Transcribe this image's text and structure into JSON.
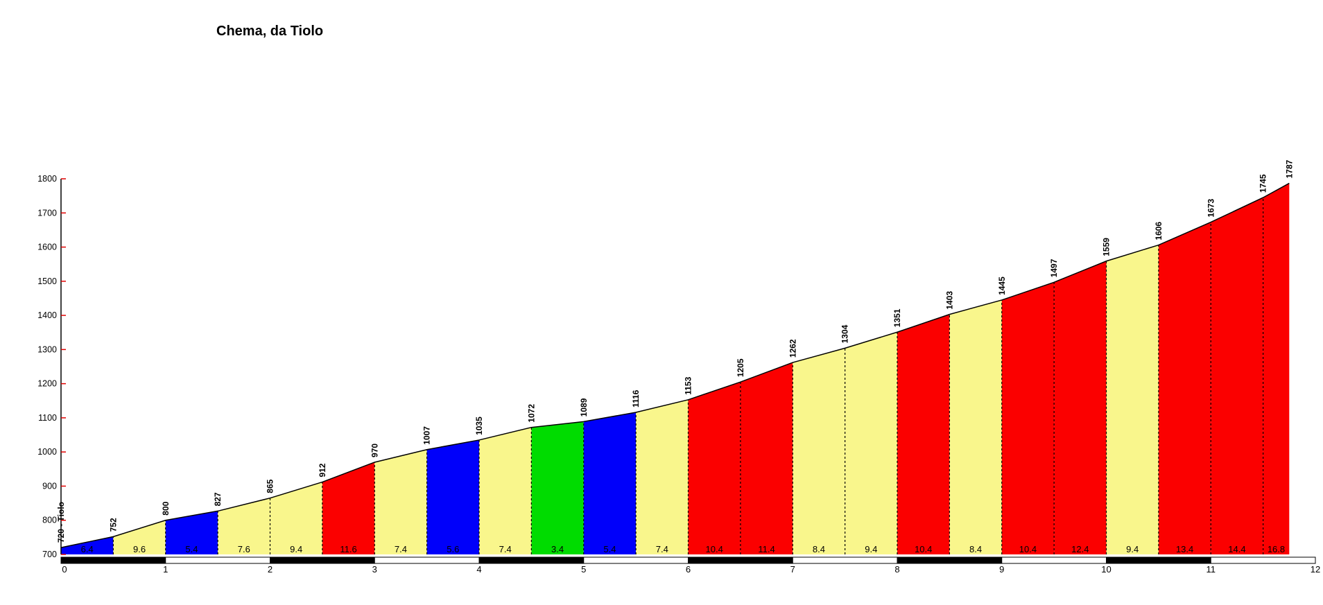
{
  "title": "Chema, da Tiolo",
  "chart_data": {
    "type": "area",
    "title": "Chema, da Tiolo",
    "x_unit": "km",
    "y_unit": "m",
    "xlim": [
      0,
      12
    ],
    "ylim": [
      700,
      1800
    ],
    "x_ticks": [
      0,
      1,
      2,
      3,
      4,
      5,
      6,
      7,
      8,
      9,
      10,
      11,
      12
    ],
    "y_ticks": [
      700,
      800,
      900,
      1000,
      1100,
      1200,
      1300,
      1400,
      1500,
      1600,
      1700,
      1800
    ],
    "grid": false,
    "legend": false,
    "start_point_name": "Tiolo",
    "start_elevation_label": "720 - Tiolo",
    "points": [
      {
        "km": 0,
        "ele": 720,
        "label": "720 - Tiolo"
      },
      {
        "km": 0.5,
        "ele": 752,
        "label": "752"
      },
      {
        "km": 1,
        "ele": 800,
        "label": "800"
      },
      {
        "km": 1.5,
        "ele": 827,
        "label": "827"
      },
      {
        "km": 2,
        "ele": 865,
        "label": "865"
      },
      {
        "km": 2.5,
        "ele": 912,
        "label": "912"
      },
      {
        "km": 3,
        "ele": 970,
        "label": "970"
      },
      {
        "km": 3.5,
        "ele": 1007,
        "label": "1007"
      },
      {
        "km": 4,
        "ele": 1035,
        "label": "1035"
      },
      {
        "km": 4.5,
        "ele": 1072,
        "label": "1072"
      },
      {
        "km": 5,
        "ele": 1089,
        "label": "1089"
      },
      {
        "km": 5.5,
        "ele": 1116,
        "label": "1116"
      },
      {
        "km": 6,
        "ele": 1153,
        "label": "1153"
      },
      {
        "km": 6.5,
        "ele": 1205,
        "label": "1205"
      },
      {
        "km": 7,
        "ele": 1262,
        "label": "1262"
      },
      {
        "km": 7.5,
        "ele": 1304,
        "label": "1304"
      },
      {
        "km": 8,
        "ele": 1351,
        "label": "1351"
      },
      {
        "km": 8.5,
        "ele": 1403,
        "label": "1403"
      },
      {
        "km": 9,
        "ele": 1445,
        "label": "1445"
      },
      {
        "km": 9.5,
        "ele": 1497,
        "label": "1497"
      },
      {
        "km": 10,
        "ele": 1559,
        "label": "1559"
      },
      {
        "km": 10.5,
        "ele": 1606,
        "label": "1606"
      },
      {
        "km": 11,
        "ele": 1673,
        "label": "1673"
      },
      {
        "km": 11.5,
        "ele": 1745,
        "label": "1745"
      },
      {
        "km": 11.75,
        "ele": 1787,
        "label": "1787"
      }
    ],
    "segments": [
      {
        "from_km": 0,
        "to_km": 0.5,
        "gradient": "6.4",
        "color": "blue"
      },
      {
        "from_km": 0.5,
        "to_km": 1,
        "gradient": "9.6",
        "color": "yellow"
      },
      {
        "from_km": 1,
        "to_km": 1.5,
        "gradient": "5.4",
        "color": "blue"
      },
      {
        "from_km": 1.5,
        "to_km": 2,
        "gradient": "7.6",
        "color": "yellow"
      },
      {
        "from_km": 2,
        "to_km": 2.5,
        "gradient": "9.4",
        "color": "yellow"
      },
      {
        "from_km": 2.5,
        "to_km": 3,
        "gradient": "11.6",
        "color": "red"
      },
      {
        "from_km": 3,
        "to_km": 3.5,
        "gradient": "7.4",
        "color": "yellow"
      },
      {
        "from_km": 3.5,
        "to_km": 4,
        "gradient": "5.6",
        "color": "blue"
      },
      {
        "from_km": 4,
        "to_km": 4.5,
        "gradient": "7.4",
        "color": "yellow"
      },
      {
        "from_km": 4.5,
        "to_km": 5,
        "gradient": "3.4",
        "color": "green"
      },
      {
        "from_km": 5,
        "to_km": 5.5,
        "gradient": "5.4",
        "color": "blue"
      },
      {
        "from_km": 5.5,
        "to_km": 6,
        "gradient": "7.4",
        "color": "yellow"
      },
      {
        "from_km": 6,
        "to_km": 6.5,
        "gradient": "10.4",
        "color": "red"
      },
      {
        "from_km": 6.5,
        "to_km": 7,
        "gradient": "11.4",
        "color": "red"
      },
      {
        "from_km": 7,
        "to_km": 7.5,
        "gradient": "8.4",
        "color": "yellow"
      },
      {
        "from_km": 7.5,
        "to_km": 8,
        "gradient": "9.4",
        "color": "yellow"
      },
      {
        "from_km": 8,
        "to_km": 8.5,
        "gradient": "10.4",
        "color": "red"
      },
      {
        "from_km": 8.5,
        "to_km": 9,
        "gradient": "8.4",
        "color": "yellow"
      },
      {
        "from_km": 9,
        "to_km": 9.5,
        "gradient": "10.4",
        "color": "red"
      },
      {
        "from_km": 9.5,
        "to_km": 10,
        "gradient": "12.4",
        "color": "red"
      },
      {
        "from_km": 10,
        "to_km": 10.5,
        "gradient": "9.4",
        "color": "yellow"
      },
      {
        "from_km": 10.5,
        "to_km": 11,
        "gradient": "13.4",
        "color": "red"
      },
      {
        "from_km": 11,
        "to_km": 11.5,
        "gradient": "14.4",
        "color": "red"
      },
      {
        "from_km": 11.5,
        "to_km": 11.75,
        "gradient": "16.8",
        "color": "red"
      }
    ],
    "palette": {
      "blue": "#0000fa",
      "yellow": "#f9f68c",
      "red": "#fb0000",
      "green": "#00dc00"
    },
    "axis_tick_color": "#e00000",
    "line_color": "#000000",
    "km_bar": {
      "from_km": 0,
      "to_km": 12,
      "interval_km": 1,
      "fill_odd": "#000000",
      "fill_even": "#ffffff"
    }
  }
}
